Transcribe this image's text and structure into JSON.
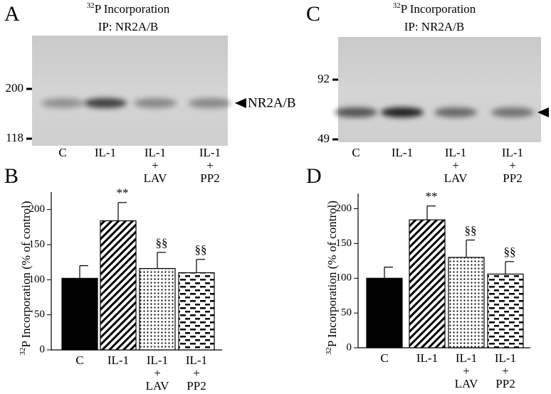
{
  "blots": [
    {
      "letter": "A",
      "title_sup": "32",
      "title": "P Incorporation",
      "subtitle": "IP: NR2A/B",
      "markers": [
        200,
        118
      ],
      "lanes": [
        [
          "C"
        ],
        [
          "IL-1"
        ],
        [
          "IL-1",
          "+",
          "LAV"
        ],
        [
          "IL-1",
          "+",
          "PP2"
        ]
      ],
      "band_label": "NR2A/B"
    },
    {
      "letter": "C",
      "title_sup": "32",
      "title": "P Incorporation",
      "subtitle": "IP: NR2A/B",
      "markers": [
        92,
        49
      ],
      "lanes": [
        [
          "C"
        ],
        [
          "IL-1"
        ],
        [
          "IL-1",
          "+",
          "LAV"
        ],
        [
          "IL-1",
          "+",
          "PP2"
        ]
      ]
    }
  ],
  "chart_data": [
    {
      "type": "bar",
      "letter": "B",
      "ylabel_sup": "32",
      "ylabel": "P Incorporation (% of control)",
      "categories": [
        [
          "C"
        ],
        [
          "IL-1"
        ],
        [
          "IL-1",
          "+",
          "LAV"
        ],
        [
          "IL-1",
          "+",
          "PP2"
        ]
      ],
      "values": [
        102,
        184,
        116,
        110
      ],
      "errors": [
        18,
        26,
        23,
        19
      ],
      "marks": [
        null,
        "**",
        "§§",
        "§§"
      ],
      "patterns": [
        "solid",
        "diagonal",
        "dots",
        "dashes"
      ],
      "color": "#000000",
      "ylim": [
        0,
        225
      ],
      "yticks": [
        0,
        50,
        100,
        150,
        200
      ]
    },
    {
      "type": "bar",
      "letter": "D",
      "ylabel_sup": "32",
      "ylabel": "P Incorporation (% of control)",
      "categories": [
        [
          "C"
        ],
        [
          "IL-1"
        ],
        [
          "IL-1",
          "+",
          "LAV"
        ],
        [
          "IL-1",
          "+",
          "PP2"
        ]
      ],
      "values": [
        100,
        184,
        130,
        106
      ],
      "errors": [
        16,
        20,
        25,
        18
      ],
      "marks": [
        null,
        "**",
        "§§",
        "§§"
      ],
      "patterns": [
        "solid",
        "diagonal",
        "dots",
        "dashes"
      ],
      "color": "#000000",
      "ylim": [
        0,
        222
      ],
      "yticks": [
        0,
        50,
        100,
        150,
        200
      ]
    }
  ]
}
